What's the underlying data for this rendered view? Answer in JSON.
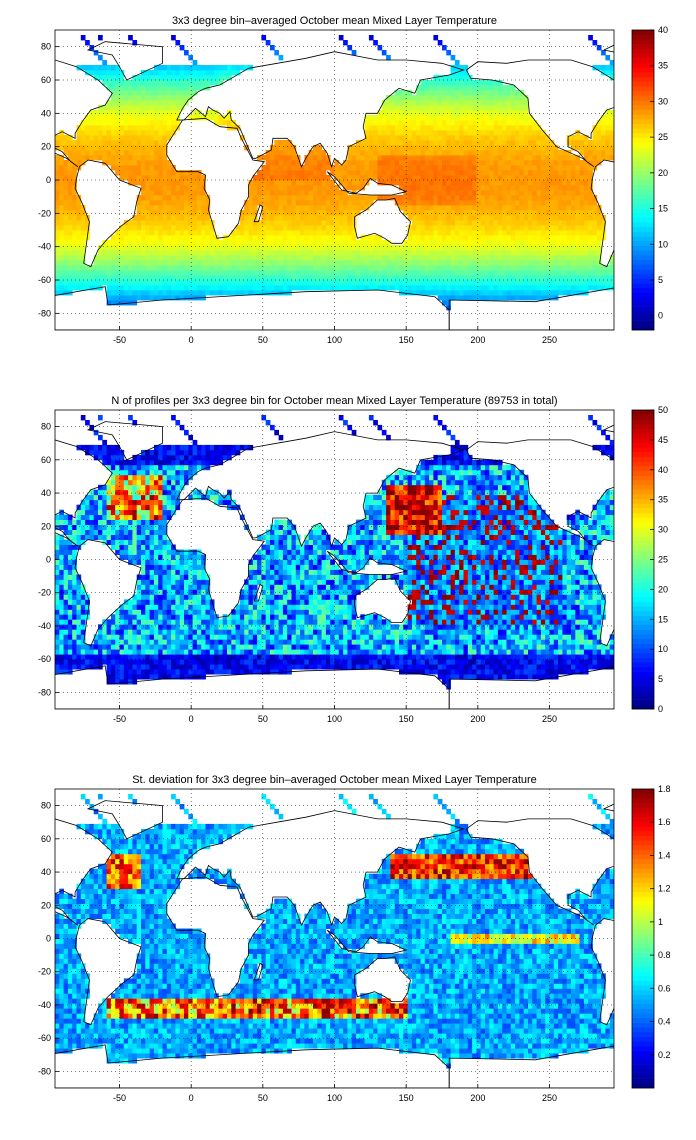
{
  "figure": {
    "colormap": "jet",
    "land_color": "#ffffff",
    "grid_style": "dotted"
  },
  "chart_data": [
    {
      "type": "heatmap",
      "title": "3x3 degree bin–averaged October mean Mixed Layer Temperature",
      "xlabel": "",
      "ylabel": "",
      "xlim": [
        -95,
        295
      ],
      "ylim": [
        -90,
        90
      ],
      "x_ticks": [
        -50,
        0,
        50,
        100,
        150,
        200,
        250
      ],
      "y_ticks": [
        80,
        60,
        40,
        20,
        0,
        -20,
        -40,
        -60,
        -80
      ],
      "grid": true,
      "bin_size_deg": 3,
      "colorbar": {
        "range": [
          -2,
          40
        ],
        "ticks": [
          0,
          5,
          10,
          15,
          20,
          25,
          30,
          35,
          40
        ]
      },
      "field": "temperature"
    },
    {
      "type": "heatmap",
      "title": "N of profiles per 3x3 degree bin for October mean Mixed Layer Temperature  (89753 in total)",
      "xlabel": "",
      "ylabel": "",
      "xlim": [
        -95,
        295
      ],
      "ylim": [
        -90,
        90
      ],
      "x_ticks": [
        -50,
        0,
        50,
        100,
        150,
        200,
        250
      ],
      "y_ticks": [
        80,
        60,
        40,
        20,
        0,
        -20,
        -40,
        -60,
        -80
      ],
      "grid": true,
      "bin_size_deg": 3,
      "total_profiles": 89753,
      "colorbar": {
        "range": [
          0,
          50
        ],
        "ticks": [
          0,
          5,
          10,
          15,
          20,
          25,
          30,
          35,
          40,
          45,
          50
        ]
      },
      "field": "count"
    },
    {
      "type": "heatmap",
      "title": "St. deviation for 3x3 degree bin–averaged October mean Mixed Layer Temperature",
      "xlabel": "",
      "ylabel": "",
      "xlim": [
        -95,
        295
      ],
      "ylim": [
        -90,
        90
      ],
      "x_ticks": [
        -50,
        0,
        50,
        100,
        150,
        200,
        250
      ],
      "y_ticks": [
        80,
        60,
        40,
        20,
        0,
        -20,
        -40,
        -60,
        -80
      ],
      "grid": true,
      "bin_size_deg": 3,
      "colorbar": {
        "range": [
          0,
          1.8
        ],
        "ticks": [
          0.2,
          0.4,
          0.6,
          0.8,
          1,
          1.2,
          1.4,
          1.6,
          1.8
        ]
      },
      "field": "stdev"
    }
  ]
}
